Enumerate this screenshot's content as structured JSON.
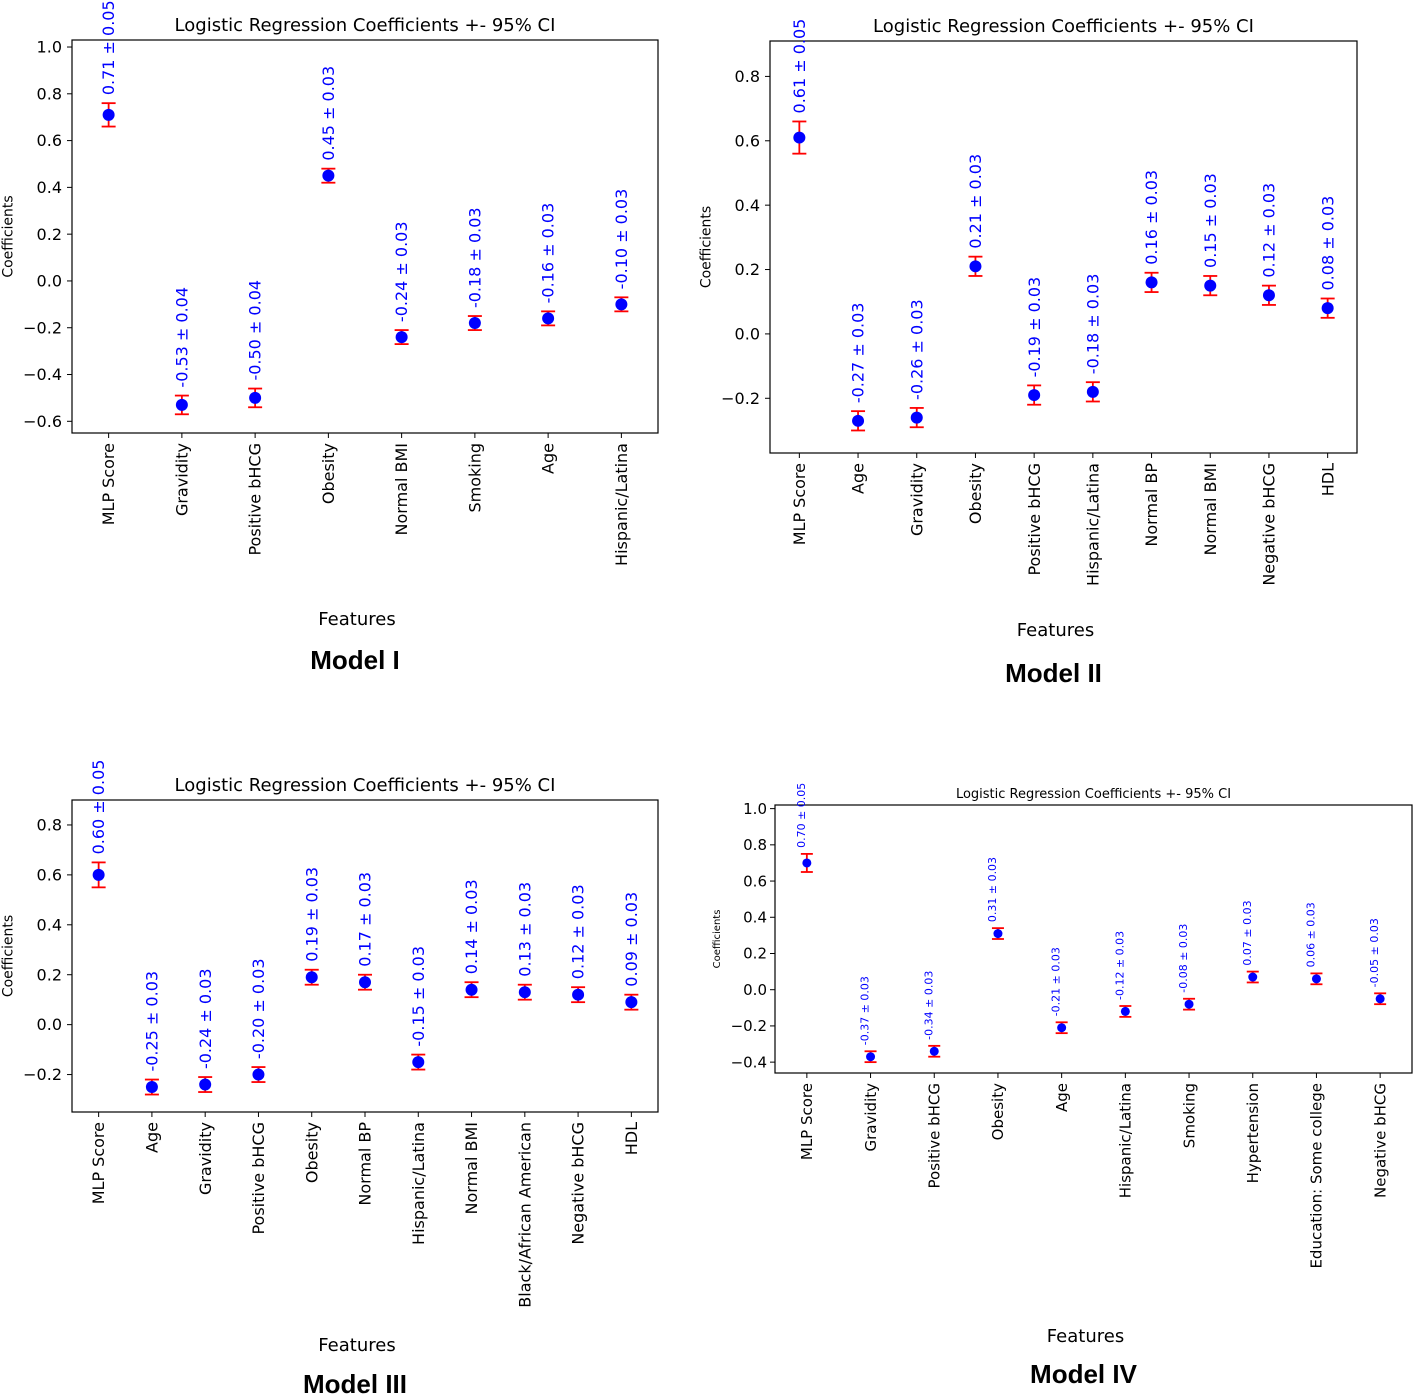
{
  "chart_data": [
    {
      "type": "scatter",
      "model_label": "Model I",
      "title": "Logistic Regression Coefficients +- 95% CI",
      "xlabel": "Features",
      "ylabel": "Coefficients",
      "ylim": [
        -0.65,
        1.03
      ],
      "yticks": [
        -0.6,
        -0.4,
        -0.2,
        0.0,
        0.2,
        0.4,
        0.6,
        0.8,
        1.0
      ],
      "ytick_labels": [
        "−0.6",
        "−0.4",
        "−0.2",
        "0.0",
        "0.2",
        "0.4",
        "0.6",
        "0.8",
        "1.0"
      ],
      "categories": [
        "MLP Score",
        "Gravidity",
        "Positive bHCG",
        "Obesity",
        "Normal BMI",
        "Smoking",
        "Age",
        "Hispanic/Latina"
      ],
      "values": [
        0.71,
        -0.53,
        -0.5,
        0.45,
        -0.24,
        -0.18,
        -0.16,
        -0.1
      ],
      "ci": [
        0.05,
        0.04,
        0.04,
        0.03,
        0.03,
        0.03,
        0.03,
        0.03
      ],
      "annotations": [
        "0.71 ± 0.05",
        "-0.53 ± 0.04",
        "-0.50 ± 0.04",
        "0.45 ± 0.03",
        "-0.24 ± 0.03",
        "-0.18 ± 0.03",
        "-0.16 ± 0.03",
        "-0.10 ± 0.03"
      ],
      "colors": {
        "point": "#0000ff",
        "error": "#ff0000",
        "annotation": "#0000ff"
      }
    },
    {
      "type": "scatter",
      "model_label": "Model II",
      "title": "Logistic Regression Coefficients +- 95% CI",
      "xlabel": "Features",
      "ylabel": "Coefficients",
      "ylim": [
        -0.37,
        0.91
      ],
      "yticks": [
        -0.2,
        0.0,
        0.2,
        0.4,
        0.6,
        0.8
      ],
      "ytick_labels": [
        "−0.2",
        "0.0",
        "0.2",
        "0.4",
        "0.6",
        "0.8"
      ],
      "categories": [
        "MLP Score",
        "Age",
        "Gravidity",
        "Obesity",
        "Positive bHCG",
        "Hispanic/Latina",
        "Normal BP",
        "Normal BMI",
        "Negative  bHCG",
        "HDL"
      ],
      "values": [
        0.61,
        -0.27,
        -0.26,
        0.21,
        -0.19,
        -0.18,
        0.16,
        0.15,
        0.12,
        0.08
      ],
      "ci": [
        0.05,
        0.03,
        0.03,
        0.03,
        0.03,
        0.03,
        0.03,
        0.03,
        0.03,
        0.03
      ],
      "annotations": [
        "0.61 ± 0.05",
        "-0.27 ± 0.03",
        "-0.26 ± 0.03",
        "0.21 ± 0.03",
        "-0.19 ± 0.03",
        "-0.18 ± 0.03",
        "0.16 ± 0.03",
        "0.15 ± 0.03",
        "0.12 ± 0.03",
        "0.08 ± 0.03"
      ],
      "colors": {
        "point": "#0000ff",
        "error": "#ff0000",
        "annotation": "#0000ff"
      }
    },
    {
      "type": "scatter",
      "model_label": "Model III",
      "title": "Logistic Regression Coefficients +- 95% CI",
      "xlabel": "Features",
      "ylabel": "Coefficients",
      "ylim": [
        -0.35,
        0.9
      ],
      "yticks": [
        -0.2,
        0.0,
        0.2,
        0.4,
        0.6,
        0.8
      ],
      "ytick_labels": [
        "−0.2",
        "0.0",
        "0.2",
        "0.4",
        "0.6",
        "0.8"
      ],
      "categories": [
        "MLP Score",
        "Age",
        "Gravidity",
        "Positive bHCG",
        "Obesity",
        "Normal BP",
        "Hispanic/Latina",
        "Normal BMI",
        "Black/African American",
        "Negative  bHCG",
        "HDL"
      ],
      "values": [
        0.6,
        -0.25,
        -0.24,
        -0.2,
        0.19,
        0.17,
        -0.15,
        0.14,
        0.13,
        0.12,
        0.09
      ],
      "ci": [
        0.05,
        0.03,
        0.03,
        0.03,
        0.03,
        0.03,
        0.03,
        0.03,
        0.03,
        0.03,
        0.03
      ],
      "annotations": [
        "0.60 ± 0.05",
        "-0.25 ± 0.03",
        "-0.24 ± 0.03",
        "-0.20 ± 0.03",
        "0.19 ± 0.03",
        "0.17 ± 0.03",
        "-0.15 ± 0.03",
        "0.14 ± 0.03",
        "0.13 ± 0.03",
        "0.12 ± 0.03",
        "0.09 ± 0.03"
      ],
      "colors": {
        "point": "#0000ff",
        "error": "#ff0000",
        "annotation": "#0000ff"
      }
    },
    {
      "type": "scatter",
      "model_label": "Model IV",
      "title": "Logistic Regression Coefficients +- 95% CI",
      "xlabel": "Features",
      "ylabel": "Coefficients",
      "ylim": [
        -0.46,
        1.02
      ],
      "yticks": [
        -0.4,
        -0.2,
        0.0,
        0.2,
        0.4,
        0.6,
        0.8,
        1.0
      ],
      "ytick_labels": [
        "−0.4",
        "−0.2",
        "0.0",
        "0.2",
        "0.4",
        "0.6",
        "0.8",
        "1.0"
      ],
      "categories": [
        "MLP Score",
        "Gravidity",
        "Positive bHCG",
        "Obesity",
        "Age",
        "Hispanic/Latina",
        "Smoking",
        "Hypertension",
        "Education: Some college",
        "Negative  bHCG"
      ],
      "values": [
        0.7,
        -0.37,
        -0.34,
        0.31,
        -0.21,
        -0.12,
        -0.08,
        0.07,
        0.06,
        -0.05
      ],
      "ci": [
        0.05,
        0.03,
        0.03,
        0.03,
        0.03,
        0.03,
        0.03,
        0.03,
        0.03,
        0.03
      ],
      "annotations": [
        "0.70 ± 0.05",
        "-0.37 ± 0.03",
        "-0.34 ± 0.03",
        "0.31 ± 0.03",
        "-0.21 ± 0.03",
        "-0.12 ± 0.03",
        "-0.08 ± 0.03",
        "0.07 ± 0.03",
        "0.06 ± 0.03",
        "-0.05 ± 0.03"
      ],
      "colors": {
        "point": "#0000ff",
        "error": "#ff0000",
        "annotation": "#0000ff"
      }
    }
  ]
}
